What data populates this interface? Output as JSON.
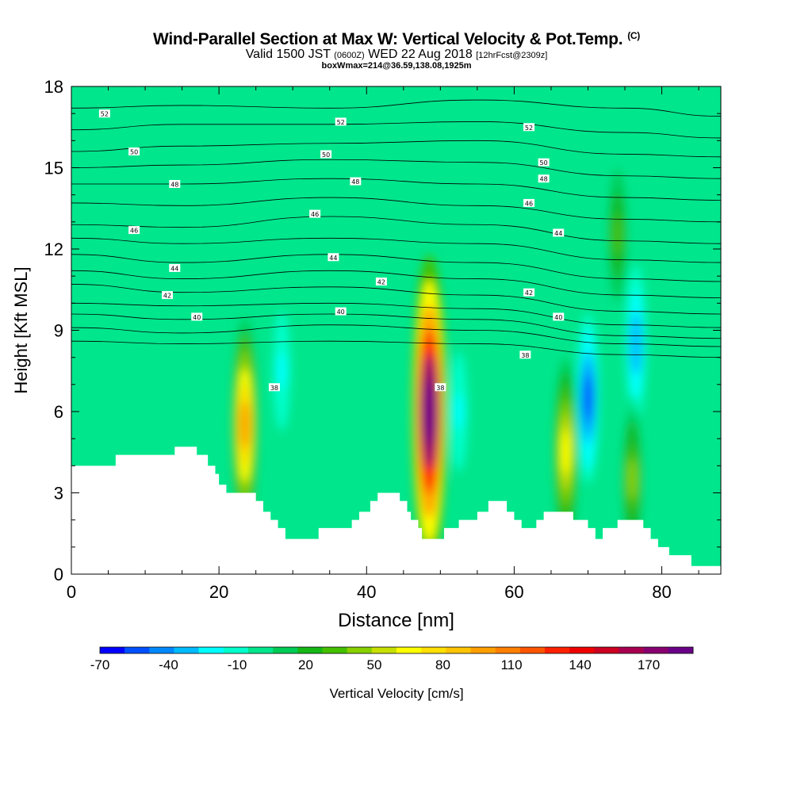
{
  "header": {
    "title": "Wind-Parallel Section at Max W: Vertical Velocity & Pot.Temp.",
    "copyright": "(C)",
    "valid_prefix": "Valid 1500 JST",
    "valid_utc": "(0600Z)",
    "valid_date": "WED 22 Aug 2018",
    "forecast": "[12hrFcst@2309z]",
    "box_info": "boxWmax=214@36.59,138.08,1925m"
  },
  "chart_data": {
    "type": "heatmap",
    "xlabel": "Distance [nm]",
    "ylabel": "Height [Kft MSL]",
    "xlim": [
      0,
      88
    ],
    "ylim": [
      0,
      18
    ],
    "x_ticks": [
      0,
      20,
      40,
      60,
      80
    ],
    "y_ticks": [
      0,
      3,
      6,
      9,
      12,
      15,
      18
    ],
    "colorbar": {
      "label": "Vertical Velocity [cm/s]",
      "tick_labels": [
        "-70",
        "-40",
        "-10",
        "20",
        "50",
        "80",
        "110",
        "140",
        "170"
      ],
      "colors": [
        "#0000ff",
        "#0050ff",
        "#0088ff",
        "#00bbff",
        "#00ffff",
        "#00ffcc",
        "#00e68c",
        "#00cc55",
        "#16b816",
        "#44c000",
        "#88d000",
        "#c8e000",
        "#ffff00",
        "#ffe000",
        "#ffc400",
        "#ffa000",
        "#ff8000",
        "#ff5500",
        "#ff2000",
        "#ee0000",
        "#cc0020",
        "#a80050",
        "#880070",
        "#6a0088"
      ]
    },
    "background_w_cms": 0,
    "updrafts": [
      {
        "x_nm": 48.5,
        "height_kft": 6.0,
        "max_w_cms": 214
      },
      {
        "x_nm": 23.5,
        "height_kft": 5.5,
        "max_w_cms": 100
      },
      {
        "x_nm": 67,
        "height_kft": 4.5,
        "max_w_cms": 70
      },
      {
        "x_nm": 74,
        "height_kft": 12.5,
        "max_w_cms": 35
      },
      {
        "x_nm": 76,
        "height_kft": 3.5,
        "max_w_cms": 45
      }
    ],
    "downdrafts": [
      {
        "x_nm": 70,
        "height_kft": 6.5,
        "min_w_cms": -50
      },
      {
        "x_nm": 76.5,
        "height_kft": 8.5,
        "min_w_cms": -35
      },
      {
        "x_nm": 52.5,
        "height_kft": 6.0,
        "min_w_cms": -15
      },
      {
        "x_nm": 28.5,
        "height_kft": 7.5,
        "min_w_cms": -15
      }
    ],
    "terrain": [
      [
        0,
        4.0
      ],
      [
        6,
        4.0
      ],
      [
        6,
        4.4
      ],
      [
        14,
        4.4
      ],
      [
        14,
        4.7
      ],
      [
        17,
        4.7
      ],
      [
        17,
        4.4
      ],
      [
        18.5,
        4.4
      ],
      [
        18.5,
        4.0
      ],
      [
        19.5,
        4.0
      ],
      [
        19.5,
        3.7
      ],
      [
        20,
        3.7
      ],
      [
        20,
        3.3
      ],
      [
        21,
        3.3
      ],
      [
        21,
        3.0
      ],
      [
        23,
        3.0
      ],
      [
        23,
        3.0
      ],
      [
        25,
        3.0
      ],
      [
        25,
        2.7
      ],
      [
        26,
        2.7
      ],
      [
        26,
        2.3
      ],
      [
        27,
        2.3
      ],
      [
        27,
        2.0
      ],
      [
        28,
        2.0
      ],
      [
        28,
        1.7
      ],
      [
        29,
        1.7
      ],
      [
        29,
        1.3
      ],
      [
        33.5,
        1.3
      ],
      [
        33.5,
        1.7
      ],
      [
        38,
        1.7
      ],
      [
        38,
        2.0
      ],
      [
        39,
        2.0
      ],
      [
        39,
        2.3
      ],
      [
        40.5,
        2.3
      ],
      [
        40.5,
        2.7
      ],
      [
        41.5,
        2.7
      ],
      [
        41.5,
        3.0
      ],
      [
        44.5,
        3.0
      ],
      [
        44.5,
        2.7
      ],
      [
        45.5,
        2.7
      ],
      [
        45.5,
        2.3
      ],
      [
        46,
        2.3
      ],
      [
        46,
        2.0
      ],
      [
        47,
        2.0
      ],
      [
        47,
        1.7
      ],
      [
        47.5,
        1.7
      ],
      [
        47.5,
        1.3
      ],
      [
        50.5,
        1.3
      ],
      [
        50.5,
        1.7
      ],
      [
        52.5,
        1.7
      ],
      [
        52.5,
        2.0
      ],
      [
        55,
        2.0
      ],
      [
        55,
        2.3
      ],
      [
        56.5,
        2.3
      ],
      [
        56.5,
        2.7
      ],
      [
        59,
        2.7
      ],
      [
        59,
        2.3
      ],
      [
        60,
        2.3
      ],
      [
        60,
        2.0
      ],
      [
        61,
        2.0
      ],
      [
        61,
        1.7
      ],
      [
        63,
        1.7
      ],
      [
        63,
        2.0
      ],
      [
        64,
        2.0
      ],
      [
        64,
        2.3
      ],
      [
        68,
        2.3
      ],
      [
        68,
        2.0
      ],
      [
        70,
        2.0
      ],
      [
        70,
        1.7
      ],
      [
        71,
        1.7
      ],
      [
        71,
        1.3
      ],
      [
        72,
        1.3
      ],
      [
        72,
        1.7
      ],
      [
        74,
        1.7
      ],
      [
        74,
        2.0
      ],
      [
        77.5,
        2.0
      ],
      [
        77.5,
        1.7
      ],
      [
        78.5,
        1.7
      ],
      [
        78.5,
        1.3
      ],
      [
        79.5,
        1.3
      ],
      [
        79.5,
        1.0
      ],
      [
        81,
        1.0
      ],
      [
        81,
        0.7
      ],
      [
        84,
        0.7
      ],
      [
        84,
        0.3
      ],
      [
        88,
        0.3
      ]
    ],
    "theta_contours": [
      {
        "label": "52",
        "h": [
          17.2,
          17.3,
          17.2,
          17.5,
          17.2,
          16.9
        ]
      },
      {
        "label": "52",
        "h": [
          16.4,
          16.6,
          16.6,
          16.7,
          16.3,
          16.1
        ]
      },
      {
        "label": "50",
        "h": [
          15.6,
          15.8,
          15.9,
          16.0,
          15.5,
          15.4
        ]
      },
      {
        "label": "50",
        "h": [
          15.0,
          15.1,
          15.3,
          15.2,
          14.7,
          14.6
        ]
      },
      {
        "label": "48",
        "h": [
          14.4,
          14.4,
          14.6,
          14.4,
          13.9,
          13.8
        ]
      },
      {
        "label": "48",
        "h": [
          13.7,
          13.6,
          13.9,
          13.6,
          13.1,
          13.0
        ]
      },
      {
        "label": "46",
        "h": [
          12.9,
          12.8,
          13.2,
          12.9,
          12.3,
          12.2
        ]
      },
      {
        "label": "46",
        "h": [
          12.4,
          12.2,
          12.4,
          12.2,
          11.6,
          11.5
        ]
      },
      {
        "label": "44",
        "h": [
          11.8,
          11.5,
          11.8,
          11.5,
          10.9,
          10.8
        ]
      },
      {
        "label": "44",
        "h": [
          11.2,
          10.9,
          11.2,
          10.9,
          10.3,
          10.2
        ]
      },
      {
        "label": "42",
        "h": [
          10.7,
          10.4,
          10.6,
          10.3,
          9.7,
          9.6
        ]
      },
      {
        "label": "42",
        "h": [
          10.0,
          9.9,
          10.0,
          9.8,
          9.2,
          9.1
        ]
      },
      {
        "label": "40",
        "h": [
          9.6,
          9.4,
          9.6,
          9.4,
          8.8,
          8.7
        ]
      },
      {
        "label": "40",
        "h": [
          9.1,
          8.9,
          9.2,
          9.0,
          8.5,
          8.4
        ]
      },
      {
        "label": "38",
        "h": [
          8.6,
          8.5,
          8.6,
          8.5,
          8.1,
          8.0
        ]
      }
    ],
    "theta_contour_x_nm": [
      0,
      15,
      35,
      55,
      75,
      88
    ],
    "inline_labels": [
      {
        "text": "52",
        "x": 4.5,
        "y": 17.0
      },
      {
        "text": "52",
        "x": 36.5,
        "y": 16.7
      },
      {
        "text": "52",
        "x": 62,
        "y": 16.5
      },
      {
        "text": "50",
        "x": 8.5,
        "y": 15.6
      },
      {
        "text": "50",
        "x": 34.5,
        "y": 15.5
      },
      {
        "text": "50",
        "x": 64,
        "y": 15.2
      },
      {
        "text": "48",
        "x": 14,
        "y": 14.4
      },
      {
        "text": "48",
        "x": 38.5,
        "y": 14.5
      },
      {
        "text": "48",
        "x": 64,
        "y": 14.6
      },
      {
        "text": "46",
        "x": 33,
        "y": 13.3
      },
      {
        "text": "46",
        "x": 62,
        "y": 13.7
      },
      {
        "text": "46",
        "x": 8.5,
        "y": 12.7
      },
      {
        "text": "44",
        "x": 66,
        "y": 12.6
      },
      {
        "text": "44",
        "x": 35.5,
        "y": 11.7
      },
      {
        "text": "44",
        "x": 14,
        "y": 11.3
      },
      {
        "text": "42",
        "x": 42,
        "y": 10.8
      },
      {
        "text": "42",
        "x": 62,
        "y": 10.4
      },
      {
        "text": "42",
        "x": 13,
        "y": 10.3
      },
      {
        "text": "40",
        "x": 36.5,
        "y": 9.7
      },
      {
        "text": "40",
        "x": 17,
        "y": 9.5
      },
      {
        "text": "40",
        "x": 66,
        "y": 9.5
      },
      {
        "text": "38",
        "x": 61.5,
        "y": 8.1
      },
      {
        "text": "38",
        "x": 27.5,
        "y": 6.9
      },
      {
        "text": "38",
        "x": 50,
        "y": 6.9
      }
    ]
  }
}
